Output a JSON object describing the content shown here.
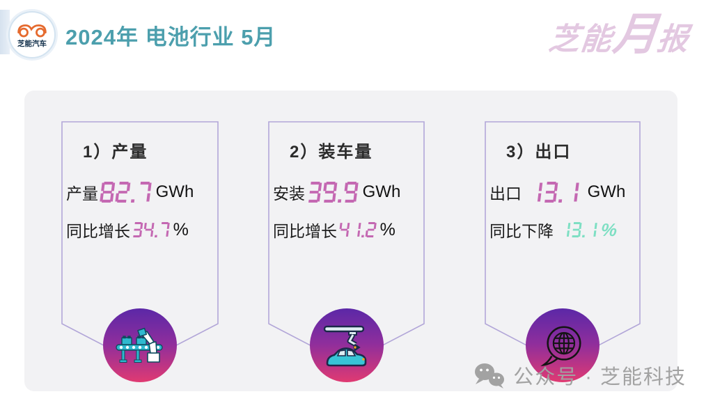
{
  "header": {
    "logo_name": "芝能汽车",
    "title": "2024年 电池行业 5月",
    "brand": {
      "p1": "芝能",
      "p2": "月",
      "p3": "报"
    }
  },
  "cards": [
    {
      "heading": "1）产量",
      "metric_label": "产量",
      "value": "82.7",
      "unit": "GWh",
      "yoy_label": "同比增长",
      "yoy_value": "34.7",
      "yoy_unit": "%",
      "icon": "factory-robot"
    },
    {
      "heading": "2）装车量",
      "metric_label": "安装",
      "value": "39.9",
      "unit": "GWh",
      "yoy_label": "同比增长",
      "yoy_value": "41.2",
      "yoy_unit": "%",
      "icon": "car-assembly"
    },
    {
      "heading": "3）出口",
      "metric_label": "出口",
      "value": "13.1",
      "unit": "GWh",
      "yoy_label": "同比下降",
      "yoy_value": "13.1",
      "yoy_unit": "%",
      "icon": "globe-chat"
    }
  ],
  "footer": {
    "watermark": "公众号 · 芝能科技"
  },
  "colors": {
    "number_pink": "#c468b2",
    "number_green": "#7edfc3",
    "title_teal": "#4c9fad",
    "brand_pink": "#e3c8e1",
    "card_border": "#b2a6d8",
    "panel_bg": "#f2f2f4",
    "icon_gradient_top": "#5b28a7",
    "icon_gradient_bottom": "#e03a72",
    "logo_orange": "#e56a2e"
  }
}
